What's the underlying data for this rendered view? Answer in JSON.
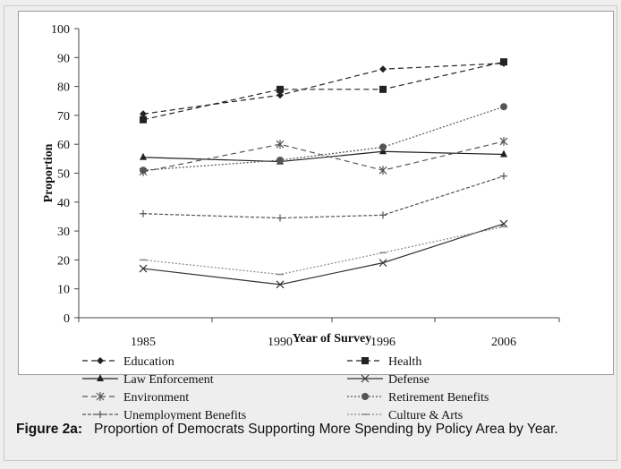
{
  "chart_data": {
    "type": "line",
    "categories": [
      "1985",
      "1990",
      "1996",
      "2006"
    ],
    "xlabel": "Year of Survey",
    "ylabel": "Proportion",
    "ylim": [
      0,
      100
    ],
    "yticks": [
      0,
      10,
      20,
      30,
      40,
      50,
      60,
      70,
      80,
      90,
      100
    ],
    "grid": false,
    "legend_position": "bottom",
    "series": [
      {
        "name": "Education",
        "values": [
          70.5,
          77,
          86,
          88
        ],
        "marker": "diamond",
        "dash": "dashed",
        "color": "#222222"
      },
      {
        "name": "Health",
        "values": [
          68.5,
          79,
          79,
          88.5
        ],
        "marker": "square",
        "dash": "dashed",
        "color": "#222222"
      },
      {
        "name": "Law Enforcement",
        "values": [
          55.5,
          54,
          57.5,
          56.5
        ],
        "marker": "triangle",
        "dash": "solid",
        "color": "#222222"
      },
      {
        "name": "Defense",
        "values": [
          17,
          11.5,
          19,
          32.5
        ],
        "marker": "x",
        "dash": "solid",
        "color": "#333333"
      },
      {
        "name": "Environment",
        "values": [
          50.5,
          60,
          51,
          61
        ],
        "marker": "star",
        "dash": "dashed",
        "color": "#555555"
      },
      {
        "name": "Retirement Benefits",
        "values": [
          51,
          54.5,
          59,
          73
        ],
        "marker": "circle",
        "dash": "dotted",
        "color": "#555555"
      },
      {
        "name": "Unemployment Benefits",
        "values": [
          36,
          34.5,
          35.5,
          49
        ],
        "marker": "plus",
        "dash": "densedash",
        "color": "#555555"
      },
      {
        "name": "Culture & Arts",
        "values": [
          20,
          15,
          22.5,
          31.5
        ],
        "marker": "dash",
        "dash": "dotted",
        "color": "#888888"
      }
    ]
  },
  "caption": {
    "label": "Figure 2a:",
    "text": "Proportion of Democrats Supporting More Spending by Policy Area by Year."
  }
}
